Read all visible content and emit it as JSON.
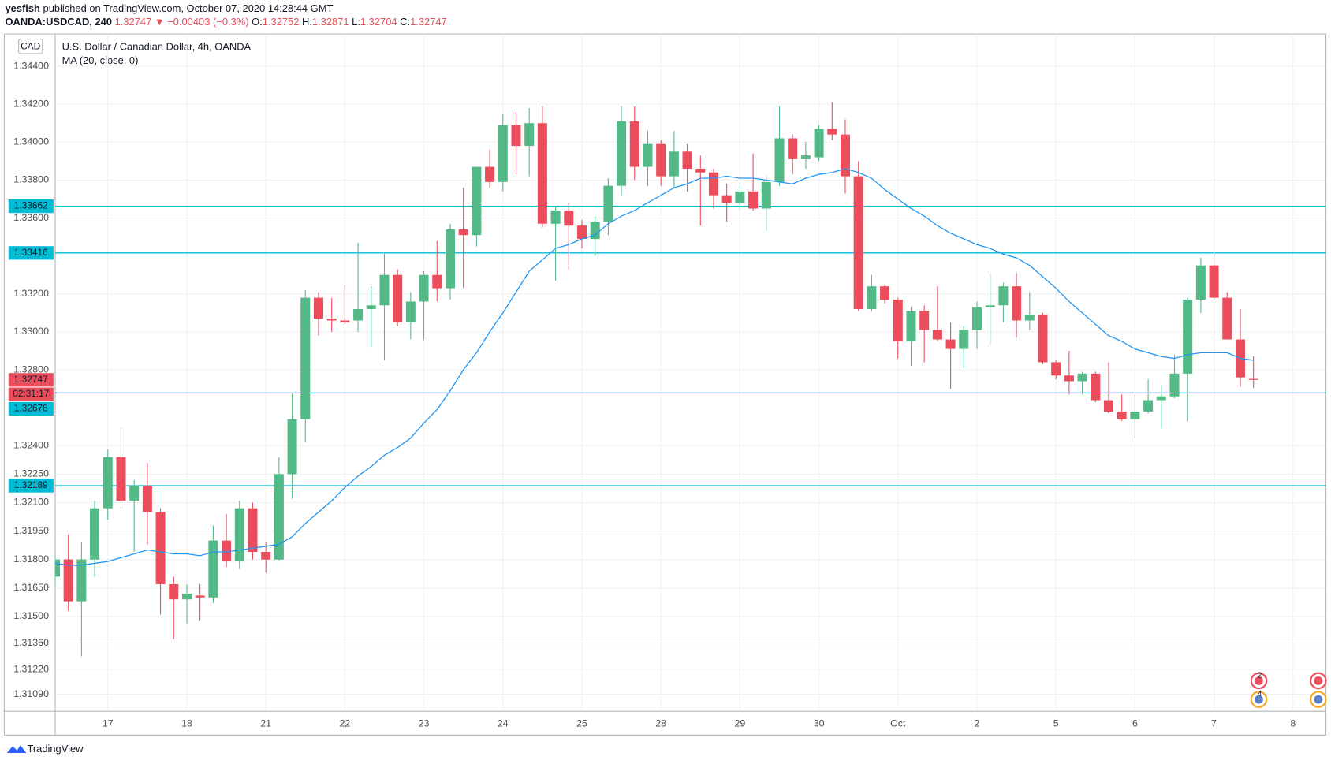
{
  "header": {
    "author": "yesfish",
    "published": "published on TradingView.com, October 07, 2020 14:28:44 GMT",
    "symbol": "OANDA:USDCAD, 240",
    "last": "1.32747",
    "change": "▼ −0.00403 (−0.3%)",
    "ohlc": [
      {
        "key": "O:",
        "value": "1.32752"
      },
      {
        "key": "H:",
        "value": "1.32871"
      },
      {
        "key": "L:",
        "value": "1.32704"
      },
      {
        "key": "C:",
        "value": "1.32747"
      }
    ]
  },
  "chart_data": {
    "type": "candlestick",
    "title": "U.S. Dollar / Canadian Dollar, 4h, OANDA",
    "currency": "CAD",
    "indicator": "MA (20, close, 0)",
    "categories": [
      null,
      null,
      null,
      null,
      null,
      null,
      null,
      null,
      null,
      null,
      null,
      null,
      null,
      null,
      null,
      null,
      null,
      null,
      null,
      null,
      null,
      null,
      null,
      null,
      null,
      null,
      null,
      null,
      null,
      null,
      null,
      null,
      null,
      null,
      null,
      null,
      null,
      null,
      null,
      null,
      null,
      null,
      null,
      null,
      null,
      null,
      null,
      null,
      null,
      null,
      null,
      null,
      null,
      null,
      null,
      null,
      null,
      null,
      null,
      null,
      null,
      null,
      null,
      null,
      null,
      null,
      null,
      null,
      null,
      null,
      null,
      null,
      null,
      null,
      null,
      null,
      null,
      null,
      null,
      null,
      null,
      null,
      null,
      null,
      null,
      null,
      null,
      null,
      null,
      null,
      null,
      null
    ],
    "open": [
      1.3171,
      1.318,
      1.3158,
      1.318,
      1.3207,
      1.3234,
      1.3211,
      1.3219,
      1.3205,
      1.3167,
      1.3159,
      1.3161,
      1.316,
      1.319,
      1.3179,
      1.3207,
      1.3184,
      1.318,
      1.3225,
      1.3254,
      1.3318,
      1.3307,
      1.3306,
      1.3306,
      1.3312,
      1.3314,
      1.333,
      1.3305,
      1.3316,
      1.333,
      1.3323,
      1.3354,
      1.3351,
      1.3387,
      1.3379,
      1.3409,
      1.3398,
      1.341,
      1.3357,
      1.3364,
      1.3356,
      1.3349,
      1.3358,
      1.3377,
      1.3411,
      1.3387,
      1.3399,
      1.3382,
      1.3395,
      1.3386,
      1.3384,
      1.3372,
      1.3368,
      1.3374,
      1.3365,
      1.3379,
      1.3402,
      1.3391,
      1.3392,
      1.3407,
      1.3404,
      1.3382,
      1.3312,
      1.3324,
      1.3317,
      1.3295,
      1.3311,
      1.3301,
      1.3296,
      1.3291,
      1.3301,
      1.3313,
      1.3314,
      1.3324,
      1.3306,
      1.3309,
      1.3284,
      1.3277,
      1.3274,
      1.3278,
      1.3264,
      1.3258,
      1.3254,
      1.3258,
      1.3264,
      1.3266,
      1.3278,
      1.3317,
      1.3335,
      1.3318,
      1.3296,
      1.32752
    ],
    "high": [
      1.3182,
      1.3193,
      1.3189,
      1.3211,
      1.3238,
      1.3249,
      1.3222,
      1.3231,
      1.3207,
      1.3171,
      1.3167,
      1.3167,
      1.3198,
      1.3204,
      1.3211,
      1.321,
      1.3189,
      1.3234,
      1.3268,
      1.3322,
      1.3321,
      1.3318,
      1.3325,
      1.3347,
      1.3324,
      1.3341,
      1.3333,
      1.3321,
      1.3332,
      1.3348,
      1.3357,
      1.3376,
      1.3387,
      1.3396,
      1.3415,
      1.3416,
      1.3418,
      1.3419,
      1.3366,
      1.3368,
      1.3359,
      1.3361,
      1.3381,
      1.3419,
      1.3419,
      1.3406,
      1.3401,
      1.3406,
      1.3399,
      1.3393,
      1.3386,
      1.3378,
      1.3377,
      1.3394,
      1.3382,
      1.3419,
      1.3404,
      1.34,
      1.3409,
      1.3421,
      1.3412,
      1.339,
      1.333,
      1.3325,
      1.3318,
      1.3313,
      1.3314,
      1.3324,
      1.3305,
      1.3303,
      1.3316,
      1.3331,
      1.3326,
      1.3331,
      1.3321,
      1.331,
      1.3285,
      1.329,
      1.3279,
      1.3279,
      1.3284,
      1.3267,
      1.3267,
      1.3275,
      1.3272,
      1.3288,
      1.3318,
      1.3339,
      1.3342,
      1.3321,
      1.3312,
      1.32871
    ],
    "low": [
      1.3166,
      1.3153,
      1.3129,
      1.3171,
      1.3201,
      1.3207,
      1.3184,
      1.3188,
      1.3151,
      1.3138,
      1.3146,
      1.3148,
      1.3157,
      1.3176,
      1.3175,
      1.318,
      1.3173,
      1.3179,
      1.3212,
      1.3242,
      1.3298,
      1.33,
      1.3304,
      1.33,
      1.3292,
      1.3285,
      1.3303,
      1.3296,
      1.3296,
      1.3316,
      1.3317,
      1.3323,
      1.3345,
      1.3376,
      1.3374,
      1.3383,
      1.3382,
      1.3355,
      1.3327,
      1.3333,
      1.3344,
      1.334,
      1.3351,
      1.3372,
      1.338,
      1.3377,
      1.3377,
      1.3376,
      1.3374,
      1.3356,
      1.3365,
      1.3358,
      1.3365,
      1.3364,
      1.3353,
      1.3377,
      1.3383,
      1.3386,
      1.339,
      1.3401,
      1.3373,
      1.3311,
      1.3311,
      1.3315,
      1.3286,
      1.3282,
      1.3284,
      1.3295,
      1.327,
      1.3281,
      1.3291,
      1.3293,
      1.3305,
      1.3297,
      1.3301,
      1.3283,
      1.3275,
      1.3267,
      1.3267,
      1.3263,
      1.3257,
      1.3253,
      1.3244,
      1.3257,
      1.3249,
      1.3265,
      1.3253,
      1.331,
      1.3317,
      1.3296,
      1.3271,
      1.32704
    ],
    "close": [
      1.318,
      1.3158,
      1.318,
      1.3207,
      1.3234,
      1.3211,
      1.3219,
      1.3205,
      1.3167,
      1.3159,
      1.3162,
      1.316,
      1.319,
      1.3179,
      1.3207,
      1.3184,
      1.318,
      1.3225,
      1.3254,
      1.3318,
      1.3307,
      1.3306,
      1.3305,
      1.3312,
      1.3314,
      1.333,
      1.3305,
      1.3316,
      1.333,
      1.3323,
      1.3354,
      1.3351,
      1.3387,
      1.3379,
      1.3409,
      1.3398,
      1.341,
      1.3357,
      1.3364,
      1.3356,
      1.3349,
      1.3358,
      1.3377,
      1.3411,
      1.3387,
      1.3399,
      1.3382,
      1.3395,
      1.3386,
      1.3384,
      1.3372,
      1.3368,
      1.3374,
      1.3365,
      1.3379,
      1.3402,
      1.3391,
      1.3393,
      1.3407,
      1.3404,
      1.3382,
      1.3312,
      1.3324,
      1.3317,
      1.3295,
      1.3311,
      1.3301,
      1.3296,
      1.3291,
      1.3301,
      1.3313,
      1.3314,
      1.3324,
      1.3306,
      1.3309,
      1.3284,
      1.3277,
      1.3274,
      1.3278,
      1.3264,
      1.3258,
      1.3254,
      1.3258,
      1.3264,
      1.3266,
      1.3278,
      1.3317,
      1.3335,
      1.3318,
      1.3296,
      1.3276,
      1.32747
    ],
    "up_color": "#53b987",
    "down_color": "#eb4d5c",
    "ma": {
      "color": "#2196f3",
      "values": [
        1.3178,
        1.3177,
        1.3177,
        1.3178,
        1.3179,
        1.3181,
        1.3183,
        1.3185,
        1.3184,
        1.3183,
        1.3183,
        1.3182,
        1.3184,
        1.3184,
        1.3185,
        1.3186,
        1.3187,
        1.3188,
        1.3192,
        1.3199,
        1.3205,
        1.3211,
        1.3218,
        1.3224,
        1.3229,
        1.3235,
        1.3239,
        1.3244,
        1.3252,
        1.3259,
        1.3269,
        1.328,
        1.3289,
        1.33,
        1.331,
        1.3321,
        1.3332,
        1.3338,
        1.3344,
        1.3346,
        1.3349,
        1.3351,
        1.3357,
        1.3361,
        1.3364,
        1.3368,
        1.3372,
        1.3376,
        1.3378,
        1.3381,
        1.3381,
        1.3382,
        1.3381,
        1.3381,
        1.338,
        1.3379,
        1.3378,
        1.3381,
        1.3383,
        1.3384,
        1.3386,
        1.3384,
        1.3381,
        1.3375,
        1.337,
        1.3365,
        1.3361,
        1.3356,
        1.3352,
        1.3349,
        1.3346,
        1.3344,
        1.3341,
        1.3339,
        1.3335,
        1.3329,
        1.3323,
        1.3316,
        1.331,
        1.3304,
        1.3298,
        1.3295,
        1.3291,
        1.3289,
        1.3287,
        1.3286,
        1.3288,
        1.3289,
        1.3289,
        1.3289,
        1.3286,
        1.3285
      ]
    },
    "levels": [
      1.33662,
      1.33416,
      1.32678,
      1.32189
    ],
    "level_color": "#00bcd4",
    "last_price": {
      "value": 1.32747,
      "countdown": "02:31:17",
      "color": "#eb4d5c"
    },
    "xlim": [
      0,
      96.5
    ],
    "xticks": [
      {
        "value": 4,
        "label": "17"
      },
      {
        "value": 10,
        "label": "18"
      },
      {
        "value": 16,
        "label": "21"
      },
      {
        "value": 22,
        "label": "22"
      },
      {
        "value": 28,
        "label": "23"
      },
      {
        "value": 34,
        "label": "24"
      },
      {
        "value": 40,
        "label": "25"
      },
      {
        "value": 46,
        "label": "28"
      },
      {
        "value": 52,
        "label": "29"
      },
      {
        "value": 58,
        "label": "30"
      },
      {
        "value": 64,
        "label": "Oct"
      },
      {
        "value": 70,
        "label": "2"
      },
      {
        "value": 76,
        "label": "5"
      },
      {
        "value": 82,
        "label": "6"
      },
      {
        "value": 88,
        "label": "7"
      },
      {
        "value": 94,
        "label": "8"
      }
    ],
    "ylim": [
      1.31,
      1.3457
    ],
    "yticks": [
      {
        "value": 1.344,
        "label": "1.34400"
      },
      {
        "value": 1.342,
        "label": "1.34200"
      },
      {
        "value": 1.34,
        "label": "1.34000"
      },
      {
        "value": 1.338,
        "label": "1.33800"
      },
      {
        "value": 1.336,
        "label": "1.33600"
      },
      {
        "value": 1.332,
        "label": "1.33200"
      },
      {
        "value": 1.33,
        "label": "1.33000"
      },
      {
        "value": 1.328,
        "label": "1.32800"
      },
      {
        "value": 1.324,
        "label": "1.32400"
      },
      {
        "value": 1.3225,
        "label": "1.32250"
      },
      {
        "value": 1.321,
        "label": "1.32100"
      },
      {
        "value": 1.3195,
        "label": "1.31950"
      },
      {
        "value": 1.318,
        "label": "1.31800"
      },
      {
        "value": 1.3165,
        "label": "1.31650"
      },
      {
        "value": 1.315,
        "label": "1.31500"
      },
      {
        "value": 1.3136,
        "label": "1.31360"
      },
      {
        "value": 1.3122,
        "label": "1.31220"
      },
      {
        "value": 1.3109,
        "label": "1.31090"
      }
    ],
    "grid": true
  },
  "events": [
    2,
    4
  ],
  "footer": "TradingView"
}
